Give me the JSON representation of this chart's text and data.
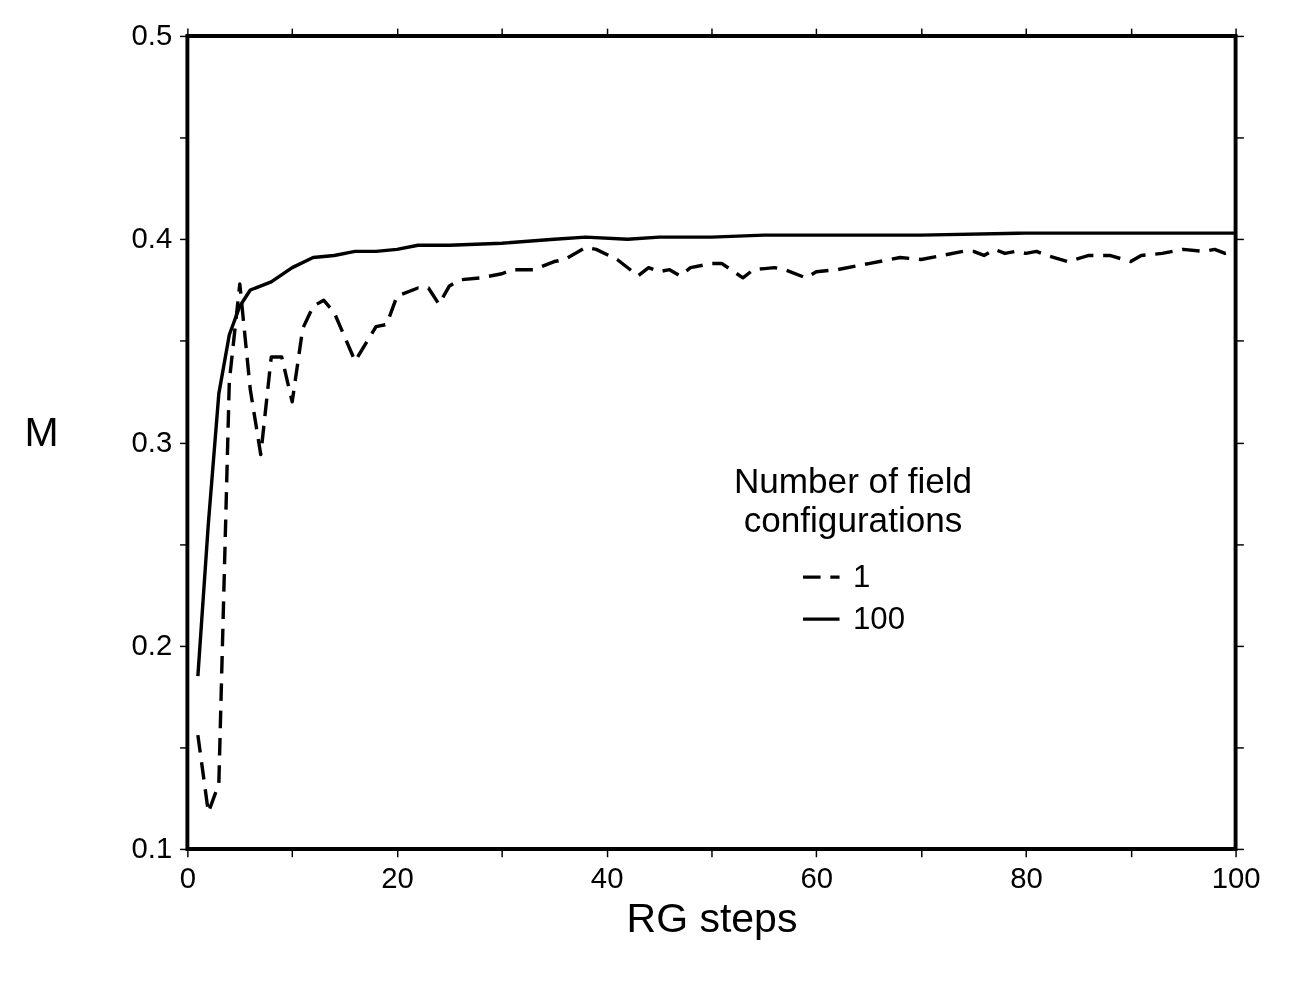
{
  "chart_data": {
    "type": "line",
    "xlabel": "RG steps",
    "ylabel": "M",
    "legend_title": "Number of field configurations",
    "legend": "right",
    "grid": false,
    "marker": "none",
    "xlim": [
      0,
      100
    ],
    "ylim": [
      0.1,
      0.5
    ],
    "xticks": [
      0,
      {
        "value": 10,
        "label": null
      },
      20,
      {
        "value": 30,
        "label": null
      },
      40,
      {
        "value": 50,
        "label": null
      },
      60,
      {
        "value": 70,
        "label": null
      },
      80,
      {
        "value": 90,
        "label": null
      },
      100
    ],
    "yticks": [
      0.1,
      {
        "value": 0.15,
        "label": null
      },
      0.2,
      {
        "value": 0.25,
        "label": null
      },
      0.3,
      {
        "value": 0.35,
        "label": null
      },
      0.4,
      {
        "value": 0.45,
        "label": null
      },
      0.5
    ],
    "series": [
      {
        "name": "1",
        "color": "#000000",
        "line_style": "dashed",
        "x": [
          1,
          2,
          3,
          4,
          5,
          6,
          7,
          8,
          9,
          10,
          11,
          12,
          13,
          14,
          16,
          18,
          19,
          20,
          22,
          23,
          24,
          25,
          26,
          28,
          30,
          31,
          33,
          35,
          36,
          38,
          39,
          41,
          43,
          44,
          45,
          46,
          47,
          48,
          50,
          51,
          53,
          54,
          56,
          57,
          59,
          60,
          62,
          65,
          68,
          70,
          72,
          74,
          75,
          76,
          77,
          78,
          79,
          80,
          81,
          82,
          84,
          86,
          88,
          90,
          91,
          93,
          95,
          97,
          98,
          99,
          100
        ],
        "values": [
          0.156,
          0.118,
          0.132,
          0.33,
          0.378,
          0.326,
          0.294,
          0.342,
          0.342,
          0.32,
          0.356,
          0.367,
          0.37,
          0.364,
          0.34,
          0.357,
          0.358,
          0.372,
          0.376,
          0.376,
          0.368,
          0.377,
          0.38,
          0.381,
          0.383,
          0.385,
          0.385,
          0.389,
          0.39,
          0.396,
          0.395,
          0.39,
          0.382,
          0.386,
          0.384,
          0.385,
          0.382,
          0.386,
          0.388,
          0.388,
          0.381,
          0.385,
          0.386,
          0.385,
          0.381,
          0.384,
          0.385,
          0.388,
          0.391,
          0.39,
          0.392,
          0.394,
          0.394,
          0.392,
          0.395,
          0.393,
          0.394,
          0.393,
          0.394,
          0.392,
          0.389,
          0.392,
          0.392,
          0.389,
          0.392,
          0.393,
          0.395,
          0.394,
          0.395,
          0.393,
          0.394
        ]
      },
      {
        "name": "100",
        "color": "#000000",
        "line_style": "solid",
        "x": [
          1,
          2,
          3,
          4,
          5,
          6,
          8,
          10,
          12,
          14,
          16,
          18,
          20,
          22,
          25,
          30,
          35,
          38,
          42,
          45,
          50,
          55,
          60,
          70,
          80,
          90,
          100
        ],
        "values": [
          0.185,
          0.26,
          0.324,
          0.353,
          0.367,
          0.375,
          0.379,
          0.386,
          0.391,
          0.392,
          0.394,
          0.394,
          0.395,
          0.397,
          0.397,
          0.398,
          0.4,
          0.401,
          0.4,
          0.401,
          0.401,
          0.402,
          0.402,
          0.402,
          0.403,
          0.403,
          0.403
        ]
      }
    ]
  }
}
